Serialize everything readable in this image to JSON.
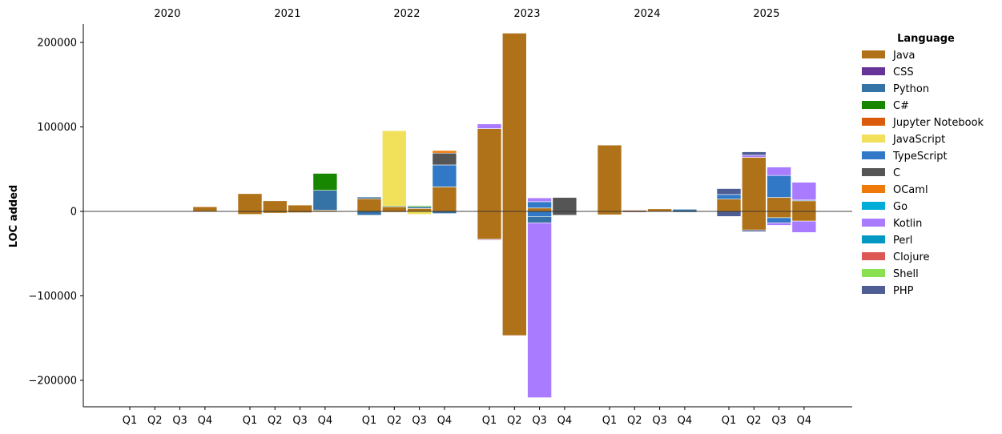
{
  "chart_data": {
    "type": "bar",
    "stacked": true,
    "diverging": true,
    "ylabel": "LOC added",
    "xlabel": "",
    "ylim": [
      -230000,
      222000
    ],
    "yticks": [
      -200000,
      -100000,
      0,
      100000,
      200000
    ],
    "ytick_labels": [
      "−200000",
      "−100000",
      "0",
      "100000",
      "200000"
    ],
    "years": [
      "2020",
      "2021",
      "2022",
      "2023",
      "2024",
      "2025"
    ],
    "quarters": [
      "Q1",
      "Q2",
      "Q3",
      "Q4"
    ],
    "grid": false,
    "legend": {
      "title": "Language",
      "placement": "right",
      "entries": [
        {
          "name": "Java",
          "color": "#b07219"
        },
        {
          "name": "CSS",
          "color": "#663399"
        },
        {
          "name": "Python",
          "color": "#3572a5"
        },
        {
          "name": "C#",
          "color": "#178600"
        },
        {
          "name": "Jupyter Notebook",
          "color": "#da5b0b"
        },
        {
          "name": "JavaScript",
          "color": "#f1e05a"
        },
        {
          "name": "TypeScript",
          "color": "#3178c6"
        },
        {
          "name": "C",
          "color": "#555555"
        },
        {
          "name": "OCaml",
          "color": "#ef7a08"
        },
        {
          "name": "Go",
          "color": "#00add8"
        },
        {
          "name": "Kotlin",
          "color": "#a97bff"
        },
        {
          "name": "Perl",
          "color": "#0298c3"
        },
        {
          "name": "Clojure",
          "color": "#db5855"
        },
        {
          "name": "Shell",
          "color": "#89e051"
        },
        {
          "name": "PHP",
          "color": "#4f5d95"
        }
      ]
    },
    "bars": [
      {
        "year": "2020",
        "quarter": "Q4",
        "segments": [
          {
            "lang": "Java",
            "value": 5500
          }
        ]
      },
      {
        "year": "2021",
        "quarter": "Q1",
        "segments": [
          {
            "lang": "Java",
            "value": 21000
          },
          {
            "lang": "Java",
            "value": -3500
          }
        ]
      },
      {
        "year": "2021",
        "quarter": "Q2",
        "segments": [
          {
            "lang": "Java",
            "value": 12500
          },
          {
            "lang": "Java",
            "value": -2000
          }
        ]
      },
      {
        "year": "2021",
        "quarter": "Q3",
        "segments": [
          {
            "lang": "Java",
            "value": 7500
          },
          {
            "lang": "Java",
            "value": -1500
          }
        ]
      },
      {
        "year": "2021",
        "quarter": "Q4",
        "segments": [
          {
            "lang": "Java",
            "value": 1500
          },
          {
            "lang": "Python",
            "value": 23500
          },
          {
            "lang": "C#",
            "value": 20000
          },
          {
            "lang": "Java",
            "value": -500
          }
        ]
      },
      {
        "year": "2022",
        "quarter": "Q1",
        "segments": [
          {
            "lang": "Java",
            "value": 15000
          },
          {
            "lang": "Python",
            "value": 2000
          },
          {
            "lang": "Python",
            "value": -4500
          }
        ]
      },
      {
        "year": "2022",
        "quarter": "Q2",
        "segments": [
          {
            "lang": "Java",
            "value": 5500
          },
          {
            "lang": "C#",
            "value": 1000
          },
          {
            "lang": "JavaScript",
            "value": 89000
          },
          {
            "lang": "Java",
            "value": -1000
          }
        ]
      },
      {
        "year": "2022",
        "quarter": "Q3",
        "segments": [
          {
            "lang": "Java",
            "value": 3500
          },
          {
            "lang": "Python",
            "value": 2000
          },
          {
            "lang": "Shell",
            "value": 1500
          },
          {
            "lang": "JavaScript",
            "value": -3500
          }
        ]
      },
      {
        "year": "2022",
        "quarter": "Q4",
        "segments": [
          {
            "lang": "Java",
            "value": 29000
          },
          {
            "lang": "TypeScript",
            "value": 26000
          },
          {
            "lang": "C",
            "value": 14000
          },
          {
            "lang": "OCaml",
            "value": 3000
          },
          {
            "lang": "Python",
            "value": -2500
          }
        ]
      },
      {
        "year": "2023",
        "quarter": "Q1",
        "segments": [
          {
            "lang": "Java",
            "value": 98000
          },
          {
            "lang": "Kotlin",
            "value": 5500
          },
          {
            "lang": "Java",
            "value": -33000
          },
          {
            "lang": "Kotlin",
            "value": -1000
          }
        ]
      },
      {
        "year": "2023",
        "quarter": "Q2",
        "segments": [
          {
            "lang": "Java",
            "value": 211000
          },
          {
            "lang": "Java",
            "value": -147000
          }
        ]
      },
      {
        "year": "2023",
        "quarter": "Q3",
        "segments": [
          {
            "lang": "Java",
            "value": 4000
          },
          {
            "lang": "TypeScript",
            "value": 7500
          },
          {
            "lang": "Kotlin",
            "value": 4500
          },
          {
            "lang": "TypeScript",
            "value": -6000
          },
          {
            "lang": "Python",
            "value": -7500
          },
          {
            "lang": "Kotlin",
            "value": -207000
          }
        ]
      },
      {
        "year": "2023",
        "quarter": "Q4",
        "segments": [
          {
            "lang": "C",
            "value": 16500
          },
          {
            "lang": "C",
            "value": -4500
          }
        ]
      },
      {
        "year": "2024",
        "quarter": "Q1",
        "segments": [
          {
            "lang": "Java",
            "value": 78500
          },
          {
            "lang": "Java",
            "value": -4000
          }
        ]
      },
      {
        "year": "2024",
        "quarter": "Q2",
        "segments": [
          {
            "lang": "Java",
            "value": 1500
          },
          {
            "lang": "Kotlin",
            "value": 500
          },
          {
            "lang": "CSS",
            "value": -1000
          }
        ]
      },
      {
        "year": "2024",
        "quarter": "Q3",
        "segments": [
          {
            "lang": "Java",
            "value": 3000
          }
        ]
      },
      {
        "year": "2024",
        "quarter": "Q4",
        "segments": [
          {
            "lang": "Python",
            "value": 2500
          },
          {
            "lang": "Python",
            "value": -1000
          }
        ]
      },
      {
        "year": "2025",
        "quarter": "Q1",
        "segments": [
          {
            "lang": "Java",
            "value": 14500
          },
          {
            "lang": "TypeScript",
            "value": 5500
          },
          {
            "lang": "PHP",
            "value": 7000
          },
          {
            "lang": "PHP",
            "value": -6000
          }
        ]
      },
      {
        "year": "2025",
        "quarter": "Q2",
        "segments": [
          {
            "lang": "Java",
            "value": 64000
          },
          {
            "lang": "Kotlin",
            "value": 2500
          },
          {
            "lang": "PHP",
            "value": 4000
          },
          {
            "lang": "Java",
            "value": -22000
          },
          {
            "lang": "PHP",
            "value": -2000
          }
        ]
      },
      {
        "year": "2025",
        "quarter": "Q3",
        "segments": [
          {
            "lang": "Java",
            "value": 16500
          },
          {
            "lang": "TypeScript",
            "value": 26000
          },
          {
            "lang": "Kotlin",
            "value": 10000
          },
          {
            "lang": "Java",
            "value": -7500
          },
          {
            "lang": "TypeScript",
            "value": -6000
          },
          {
            "lang": "Kotlin",
            "value": -3000
          }
        ]
      },
      {
        "year": "2025",
        "quarter": "Q4",
        "segments": [
          {
            "lang": "Java",
            "value": 12500
          },
          {
            "lang": "Python",
            "value": 1000
          },
          {
            "lang": "Kotlin",
            "value": 21000
          },
          {
            "lang": "Java",
            "value": -11500
          },
          {
            "lang": "Kotlin",
            "value": -13500
          }
        ]
      }
    ]
  }
}
